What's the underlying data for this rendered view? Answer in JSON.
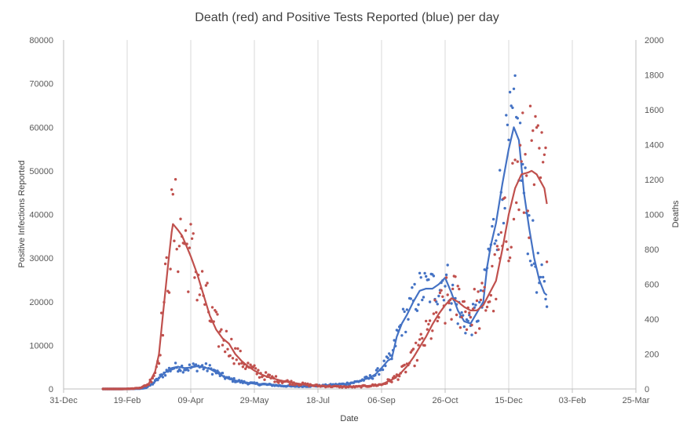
{
  "chart_data": {
    "type": "line",
    "title": "Death (red) and Positive Tests Reported (blue) per day",
    "xlabel": "Date",
    "ylabel_left": "Positive Infections Reported",
    "ylabel_right": "Deaths",
    "x_ticks": [
      "31-Dec",
      "19-Feb",
      "09-Apr",
      "29-May",
      "18-Jul",
      "06-Sep",
      "26-Oct",
      "15-Dec",
      "03-Feb",
      "25-Mar"
    ],
    "y_left_ticks": [
      "0",
      "10000",
      "20000",
      "30000",
      "40000",
      "50000",
      "60000",
      "70000",
      "80000"
    ],
    "y_right_ticks": [
      "0",
      "200",
      "400",
      "600",
      "800",
      "1000",
      "1200",
      "1400",
      "1600",
      "1800",
      "2000"
    ],
    "ylim_left": [
      0,
      80000
    ],
    "ylim_right": [
      0,
      2000
    ],
    "xlim_days": [
      0,
      450
    ],
    "grid": "vertical",
    "colors": {
      "tests": "#4472C4",
      "deaths": "#C0504D",
      "grid": "#D9D9D9",
      "axis": "#BFBFBF"
    },
    "series": [
      {
        "name": "Positive Tests Reported",
        "axis": "left",
        "color": "#4472C4",
        "smoothed_points": [
          [
            31,
            0
          ],
          [
            40,
            5
          ],
          [
            50,
            10
          ],
          [
            55,
            40
          ],
          [
            60,
            80
          ],
          [
            65,
            300
          ],
          [
            70,
            1200
          ],
          [
            75,
            2500
          ],
          [
            80,
            3800
          ],
          [
            85,
            4800
          ],
          [
            90,
            5100
          ],
          [
            95,
            4800
          ],
          [
            100,
            4900
          ],
          [
            105,
            5200
          ],
          [
            110,
            5000
          ],
          [
            115,
            4600
          ],
          [
            120,
            3800
          ],
          [
            125,
            3000
          ],
          [
            130,
            2300
          ],
          [
            140,
            1600
          ],
          [
            150,
            1200
          ],
          [
            160,
            1000
          ],
          [
            170,
            750
          ],
          [
            180,
            600
          ],
          [
            190,
            620
          ],
          [
            200,
            700
          ],
          [
            210,
            900
          ],
          [
            220,
            1100
          ],
          [
            230,
            1600
          ],
          [
            240,
            2500
          ],
          [
            245,
            3300
          ],
          [
            250,
            4800
          ],
          [
            255,
            6500
          ],
          [
            258,
            7000
          ],
          [
            262,
            12000
          ],
          [
            266,
            15000
          ],
          [
            270,
            17000
          ],
          [
            275,
            20000
          ],
          [
            280,
            22500
          ],
          [
            285,
            23000
          ],
          [
            290,
            23000
          ],
          [
            295,
            24000
          ],
          [
            300,
            25500
          ],
          [
            305,
            22000
          ],
          [
            310,
            18000
          ],
          [
            315,
            15500
          ],
          [
            320,
            15000
          ],
          [
            325,
            17500
          ],
          [
            330,
            20000
          ],
          [
            333,
            28000
          ],
          [
            336,
            33000
          ],
          [
            340,
            38000
          ],
          [
            345,
            47000
          ],
          [
            350,
            55000
          ],
          [
            354,
            60000
          ],
          [
            358,
            57000
          ],
          [
            362,
            45000
          ],
          [
            366,
            37000
          ],
          [
            370,
            30000
          ],
          [
            374,
            25000
          ],
          [
            378,
            22000
          ],
          [
            380,
            21500
          ]
        ]
      },
      {
        "name": "Deaths",
        "axis": "right",
        "color": "#C0504D",
        "smoothed_points": [
          [
            31,
            0
          ],
          [
            45,
            0
          ],
          [
            55,
            2
          ],
          [
            62,
            10
          ],
          [
            67,
            30
          ],
          [
            72,
            100
          ],
          [
            75,
            200
          ],
          [
            78,
            420
          ],
          [
            82,
            700
          ],
          [
            85,
            900
          ],
          [
            86,
            945
          ],
          [
            90,
            910
          ],
          [
            93,
            880
          ],
          [
            96,
            830
          ],
          [
            100,
            760
          ],
          [
            105,
            660
          ],
          [
            110,
            540
          ],
          [
            115,
            420
          ],
          [
            120,
            340
          ],
          [
            125,
            290
          ],
          [
            130,
            260
          ],
          [
            135,
            200
          ],
          [
            140,
            160
          ],
          [
            145,
            130
          ],
          [
            150,
            105
          ],
          [
            155,
            85
          ],
          [
            160,
            70
          ],
          [
            170,
            50
          ],
          [
            180,
            35
          ],
          [
            190,
            25
          ],
          [
            200,
            18
          ],
          [
            210,
            15
          ],
          [
            220,
            12
          ],
          [
            230,
            12
          ],
          [
            240,
            18
          ],
          [
            250,
            25
          ],
          [
            260,
            60
          ],
          [
            265,
            90
          ],
          [
            270,
            130
          ],
          [
            275,
            180
          ],
          [
            280,
            240
          ],
          [
            285,
            300
          ],
          [
            290,
            370
          ],
          [
            295,
            430
          ],
          [
            300,
            480
          ],
          [
            305,
            520
          ],
          [
            310,
            500
          ],
          [
            315,
            470
          ],
          [
            320,
            450
          ],
          [
            325,
            450
          ],
          [
            330,
            480
          ],
          [
            335,
            550
          ],
          [
            340,
            620
          ],
          [
            345,
            800
          ],
          [
            350,
            1000
          ],
          [
            355,
            1150
          ],
          [
            360,
            1230
          ],
          [
            365,
            1240
          ],
          [
            368,
            1250
          ],
          [
            372,
            1230
          ],
          [
            375,
            1190
          ],
          [
            378,
            1150
          ],
          [
            380,
            1060
          ]
        ]
      }
    ]
  }
}
